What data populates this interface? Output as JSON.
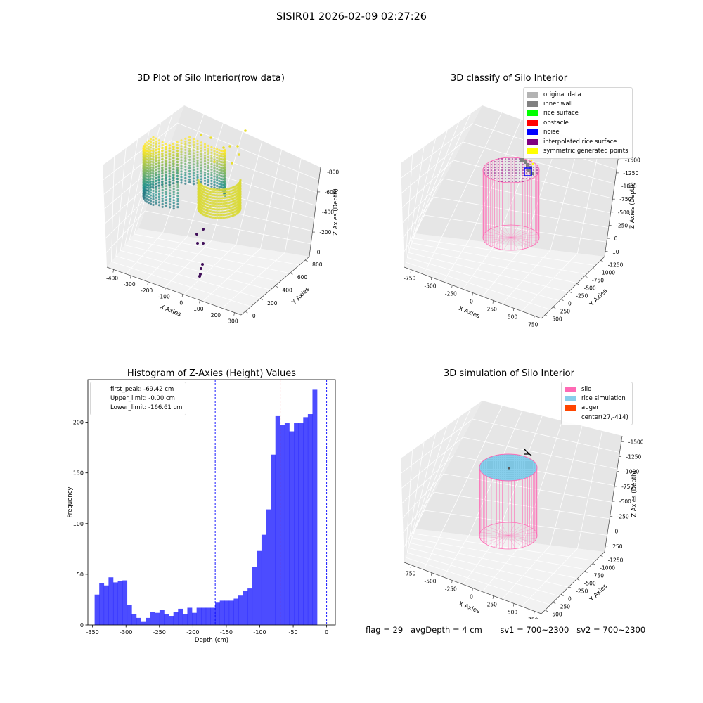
{
  "figure": {
    "title": "SISIR01 2026-02-09 02:27:26"
  },
  "panels": {
    "raw": {
      "title": "3D Plot of Silo Interior(row data)",
      "x_label": "X Axies",
      "y_label": "Y Axies",
      "z_label": "Z Axies (Depth)",
      "x_ticks": [
        "-400",
        "-300",
        "-200",
        "-100",
        "0",
        "100",
        "200",
        "300"
      ],
      "y_ticks": [
        "0",
        "200",
        "400",
        "600",
        "800"
      ],
      "z_ticks": [
        "0",
        "-200",
        "-400",
        "-600",
        "-800"
      ]
    },
    "classify": {
      "title": "3D classify of Silo Interior",
      "x_label": "X Axies",
      "y_label": "Y Axies",
      "z_label": "Z Axies (Depth)",
      "x_ticks": [
        "-750",
        "-500",
        "-250",
        "0",
        "250",
        "500",
        "750"
      ],
      "y_ticks": [
        "500",
        "250",
        "0",
        "-250",
        "-500",
        "-750",
        "-1000",
        "-1250"
      ],
      "z_ticks": [
        "10",
        "0",
        "-250",
        "-500",
        "-750",
        "-1000",
        "-1250",
        "-1500"
      ],
      "legend": [
        {
          "label": "original data",
          "color": "#b3b3b3"
        },
        {
          "label": "inner wall",
          "color": "#808080"
        },
        {
          "label": "rice surface",
          "color": "#00ff00"
        },
        {
          "label": "obstacle",
          "color": "#ff0000"
        },
        {
          "label": "noise",
          "color": "#0000ff"
        },
        {
          "label": "interpolated rice surface",
          "color": "#800080"
        },
        {
          "label": "symmetric generated points",
          "color": "#ffff00"
        }
      ]
    },
    "simulation": {
      "title": "3D simulation of Silo Interior",
      "x_label": "X Axies",
      "y_label": "Y Axies",
      "z_label": "Z Axies (Depth)",
      "x_ticks": [
        "-750",
        "-500",
        "-250",
        "0",
        "250",
        "500",
        "750"
      ],
      "y_ticks": [
        "500",
        "250",
        "0",
        "-250",
        "-500",
        "-750",
        "-1000",
        "-1250"
      ],
      "z_ticks": [
        "250",
        "0",
        "-250",
        "-500",
        "-750",
        "-1000",
        "-1250",
        "-1500"
      ],
      "legend": [
        {
          "label": "silo",
          "color": "#ff69b4"
        },
        {
          "label": "rice simulation",
          "color": "#87ceeb"
        },
        {
          "label": "auger",
          "color": "#ff4500"
        },
        {
          "label": "center(27,-414)",
          "color": ""
        }
      ]
    }
  },
  "chart_data": {
    "type": "bar",
    "title": "Histogram of Z-Axies (Height) Values",
    "xlabel": "Depth (cm)",
    "ylabel": "Frequency",
    "xlim": [
      -357,
      13
    ],
    "ylim": [
      0,
      242
    ],
    "x_ticks": [
      -350,
      -300,
      -250,
      -200,
      -150,
      -100,
      -50,
      0
    ],
    "y_ticks": [
      0,
      50,
      100,
      150,
      200
    ],
    "bar_color": "#0000ff",
    "bin_start": -346.9,
    "bin_width": 6.93,
    "counts": [
      30,
      41,
      39,
      47,
      42,
      43,
      44,
      20,
      11,
      7,
      3,
      7,
      13,
      12,
      15,
      11,
      9,
      13,
      16,
      11,
      17,
      12,
      17,
      17,
      17,
      17,
      22,
      24,
      24,
      24,
      26,
      29,
      34,
      36,
      57,
      73,
      89,
      114,
      168,
      206,
      197,
      199,
      191,
      199,
      199,
      205,
      208,
      232
    ],
    "vlines": [
      {
        "label": "first_peak: -69.42 cm",
        "x": -69.42,
        "color": "#ff0000"
      },
      {
        "label": "Upper_limit: -0.00 cm",
        "x": 0,
        "color": "#0000ff"
      },
      {
        "label": "Lower_limit: -166.61 cm",
        "x": -166.61,
        "color": "#0000ff"
      }
    ],
    "legend_position": "top-left",
    "grid": false
  },
  "status": {
    "flag": "flag = 29",
    "avg_depth": "avgDepth = 4 cm",
    "sv1": "sv1 = 700~2300",
    "sv2": "sv2 = 700~2300"
  },
  "colors": {
    "silo": "#ff69b4",
    "rice": "#87ceeb",
    "viridis_low": "#440154",
    "viridis_mid": "#21918c",
    "viridis_high": "#fde725"
  }
}
